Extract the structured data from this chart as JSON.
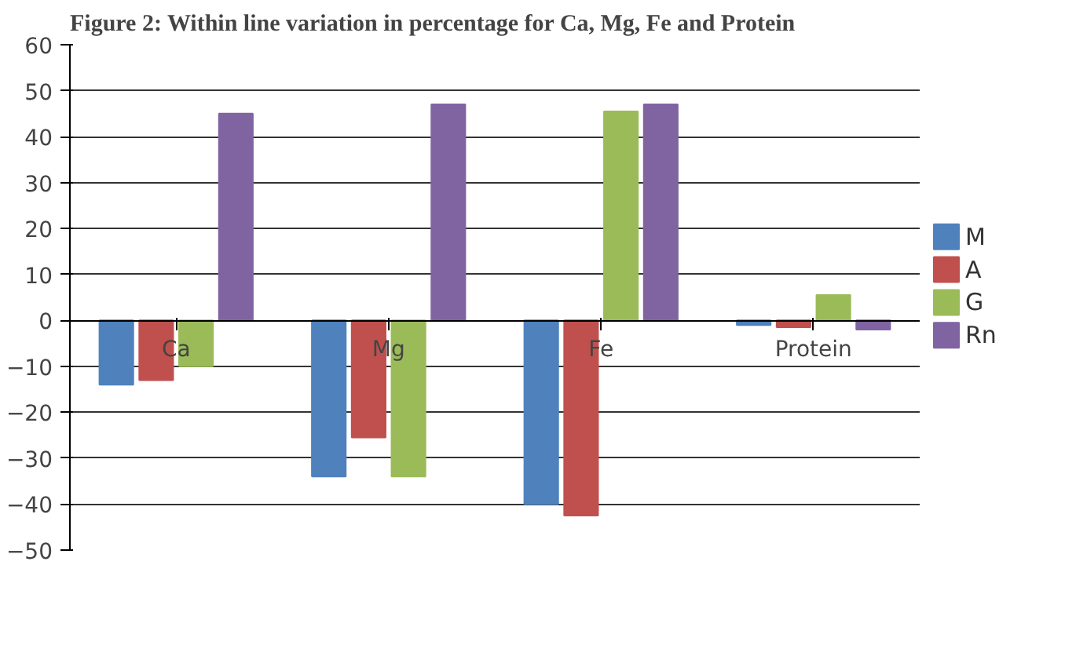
{
  "chart_data": {
    "type": "bar",
    "title": "Figure 2: Within line variation in percentage for Ca, Mg, Fe and Protein",
    "categories": [
      "Ca",
      "Mg",
      "Fe",
      "Protein"
    ],
    "series": [
      {
        "name": "M",
        "color": "#4f81bd",
        "values": [
          -14,
          -34,
          -40,
          -1
        ]
      },
      {
        "name": "A",
        "color": "#c0504d",
        "values": [
          -13,
          -25.5,
          -42.5,
          -1.5
        ]
      },
      {
        "name": "G",
        "color": "#9bbb59",
        "values": [
          -10,
          -34,
          45.5,
          5.5
        ]
      },
      {
        "name": "Rn",
        "color": "#8064a2",
        "values": [
          45,
          47,
          47,
          -2
        ]
      }
    ],
    "ylim": [
      -50,
      60
    ],
    "yticks": [
      -50,
      -40,
      -30,
      -20,
      -10,
      0,
      10,
      20,
      30,
      40,
      50,
      60
    ],
    "grid": "y",
    "legend": "right"
  }
}
